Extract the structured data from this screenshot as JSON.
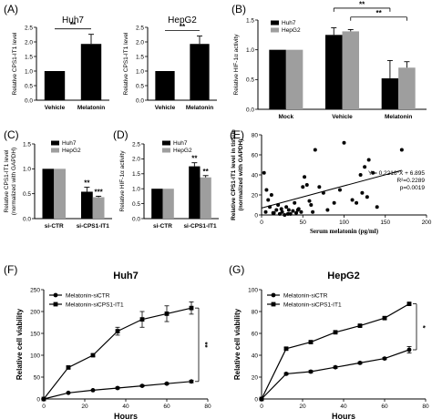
{
  "chart_data": [
    {
      "panel": "(A)",
      "type": "bar",
      "title": "Huh7",
      "ylabel": "Relative CPS1-IT1 level",
      "ylim": [
        0,
        2.5
      ],
      "yticks": [
        "0.0",
        "0.5",
        "1.0",
        "1.5",
        "2.0",
        "2.5"
      ],
      "categories": [
        "Vehicle",
        "Melatonin"
      ],
      "values": [
        1.0,
        1.93
      ],
      "errors": [
        0,
        0.33
      ],
      "color": "#000000",
      "significance": [
        {
          "text": "**",
          "between": [
            0,
            1
          ]
        }
      ]
    },
    {
      "panel": "",
      "type": "bar",
      "title": "HepG2",
      "ylabel": "Relative CPS1-IT1 level",
      "ylim": [
        0,
        2.5
      ],
      "yticks": [
        "0.0",
        "0.5",
        "1.0",
        "1.5",
        "2.0",
        "2.5"
      ],
      "categories": [
        "Vehicle",
        "Melatonin"
      ],
      "values": [
        1.0,
        1.93
      ],
      "errors": [
        0,
        0.27
      ],
      "color": "#000000",
      "significance": [
        {
          "text": "**",
          "between": [
            0,
            1
          ]
        }
      ]
    },
    {
      "panel": "(B)",
      "type": "bar",
      "ylabel": "Relative HIF-1α activity",
      "ylim": [
        0,
        1.5
      ],
      "yticks": [
        "0.0",
        "0.5",
        "1.0",
        "1.5"
      ],
      "categories": [
        "Mock",
        "Vehicle",
        "Melatonin"
      ],
      "series": [
        {
          "name": "Huh7",
          "color": "#000000",
          "values": [
            1.0,
            1.25,
            0.52
          ],
          "errors": [
            0,
            0.12,
            0.3
          ]
        },
        {
          "name": "HepG2",
          "color": "#9e9e9e",
          "values": [
            1.0,
            1.31,
            0.7
          ],
          "errors": [
            0,
            0.03,
            0.1
          ]
        }
      ],
      "significance": [
        {
          "text": "**",
          "between": [
            1,
            2
          ],
          "level": 1.7
        },
        {
          "text": "**",
          "between": [
            1,
            2
          ],
          "level": 1.55
        }
      ]
    },
    {
      "panel": "(C)",
      "type": "bar",
      "ylabel": "Relative CPS1-IT1 level (normalized with GAPDH)",
      "ylim": [
        0,
        1.5
      ],
      "yticks": [
        "0.0",
        "0.5",
        "1.0",
        "1.5"
      ],
      "categories": [
        "si-CTR",
        "si-CPS1-IT1"
      ],
      "series": [
        {
          "name": "Huh7",
          "color": "#000000",
          "values": [
            1.0,
            0.54
          ],
          "errors": [
            0,
            0.09
          ]
        },
        {
          "name": "HepG2",
          "color": "#9e9e9e",
          "values": [
            1.0,
            0.43
          ],
          "errors": [
            0,
            0.02
          ]
        }
      ],
      "bar_labels": [
        "",
        "",
        "**",
        "***"
      ]
    },
    {
      "panel": "(D)",
      "type": "bar",
      "ylabel": "Relative HIF-1α activity",
      "ylim": [
        0,
        2.5
      ],
      "yticks": [
        "0.0",
        "0.5",
        "1.0",
        "1.5",
        "2.0",
        "2.5"
      ],
      "categories": [
        "si-CTR",
        "si-CPS1-IT1"
      ],
      "series": [
        {
          "name": "Huh7",
          "color": "#000000",
          "values": [
            1.0,
            1.75
          ],
          "errors": [
            0,
            0.12
          ]
        },
        {
          "name": "HepG2",
          "color": "#9e9e9e",
          "values": [
            1.0,
            1.38
          ],
          "errors": [
            0,
            0.06
          ]
        }
      ],
      "bar_labels": [
        "",
        "",
        "**",
        "**"
      ]
    },
    {
      "panel": "(E)",
      "type": "scatter",
      "xlabel": "Serum melatonin (pg/ml)",
      "ylabel": "Relative CPS1-IT1 level in tissue (normalized with GAPDH)",
      "xlim": [
        0,
        200
      ],
      "ylim": [
        0,
        80
      ],
      "xticks": [
        "0",
        "50",
        "100",
        "150",
        "200"
      ],
      "yticks": [
        "0",
        "20",
        "40",
        "60",
        "80"
      ],
      "x": [
        3,
        5,
        8,
        10,
        12,
        15,
        18,
        20,
        22,
        25,
        28,
        30,
        33,
        35,
        38,
        40,
        42,
        45,
        48,
        50,
        55,
        60,
        62,
        65,
        70,
        75,
        80,
        88,
        95,
        100,
        110,
        115,
        120,
        122,
        125,
        128,
        130,
        135,
        140,
        170,
        6,
        14,
        24,
        32,
        44,
        52,
        58
      ],
      "y": [
        42,
        3,
        15,
        8,
        20,
        2,
        5,
        10,
        1,
        3,
        0,
        8,
        5,
        1,
        4,
        12,
        2,
        6,
        3,
        28,
        30,
        10,
        3,
        65,
        28,
        22,
        5,
        12,
        25,
        72,
        15,
        12,
        40,
        22,
        48,
        18,
        55,
        42,
        8,
        65,
        25,
        2,
        6,
        1,
        5,
        38,
        14
      ],
      "fit": {
        "slope": 0.2216,
        "intercept": 6.895
      },
      "annotation": [
        "Y = 0.2216*X + 6.895",
        "R²=0.2289",
        "p=0.0019"
      ]
    },
    {
      "panel": "(F)",
      "type": "line",
      "title": "Huh7",
      "xlabel": "Hours",
      "ylabel": "Relative cell viability",
      "xlim": [
        0,
        80
      ],
      "ylim": [
        0,
        250
      ],
      "xticks": [
        "0",
        "20",
        "40",
        "60",
        "80"
      ],
      "yticks": [
        "0",
        "50",
        "100",
        "150",
        "200",
        "250"
      ],
      "x": [
        0,
        12,
        24,
        36,
        48,
        60,
        72
      ],
      "series": [
        {
          "name": "Melatonin-siCTR",
          "marker": "circle",
          "values": [
            0,
            14,
            20,
            25,
            30,
            35,
            40
          ],
          "errors": [
            0,
            1,
            1,
            2,
            2,
            2,
            3
          ]
        },
        {
          "name": "Melatonin-siCPS1-IT1",
          "marker": "square",
          "values": [
            0,
            72,
            100,
            155,
            182,
            195,
            208
          ],
          "errors": [
            0,
            3,
            3,
            9,
            18,
            18,
            14
          ]
        }
      ],
      "significance": [
        {
          "text": "**"
        }
      ]
    },
    {
      "panel": "(G)",
      "type": "line",
      "title": "HepG2",
      "xlabel": "Hours",
      "ylabel": "Relative cell viability",
      "xlim": [
        0,
        80
      ],
      "ylim": [
        0,
        100
      ],
      "xticks": [
        "0",
        "20",
        "40",
        "60",
        "80"
      ],
      "yticks": [
        "0",
        "20",
        "40",
        "60",
        "80",
        "100"
      ],
      "x": [
        0,
        12,
        24,
        36,
        48,
        60,
        72
      ],
      "series": [
        {
          "name": "Melatonin-siCTR",
          "marker": "circle",
          "values": [
            0,
            23,
            25,
            29,
            33,
            37,
            45
          ],
          "errors": [
            0,
            1,
            1,
            1,
            1,
            1,
            3
          ]
        },
        {
          "name": "Melatonin-siCPS1-IT1",
          "marker": "square",
          "values": [
            0,
            46,
            52,
            61,
            67,
            74,
            87
          ],
          "errors": [
            0,
            1,
            1,
            1,
            1,
            1,
            1
          ]
        }
      ],
      "significance": [
        {
          "text": "*"
        }
      ]
    }
  ]
}
